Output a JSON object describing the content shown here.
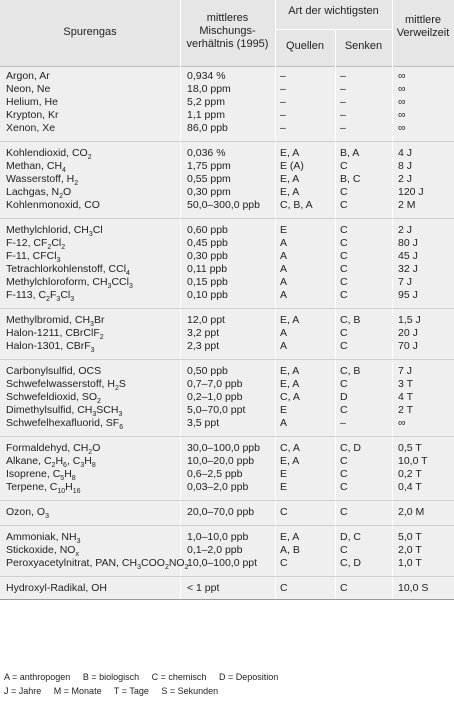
{
  "header": {
    "col0": "Spurengas",
    "col1_line1": "mittleres",
    "col1_line2": "Mischungs-",
    "col1_line3": "verhältnis (1995)",
    "col_group": "Art der wichtigsten",
    "col2": "Quellen",
    "col3": "Senken",
    "col4_line1": "mittlere",
    "col4_line2": "Verweilzeit"
  },
  "groups": [
    {
      "rows": [
        {
          "gas": "Argon, Ar",
          "ratio": "0,934 %",
          "src": "–",
          "sink": "–",
          "time": "∞"
        },
        {
          "gas": "Neon, Ne",
          "ratio": "18,0 ppm",
          "src": "–",
          "sink": "–",
          "time": "∞"
        },
        {
          "gas": "Helium, He",
          "ratio": "5,2 ppm",
          "src": "–",
          "sink": "–",
          "time": "∞"
        },
        {
          "gas": "Krypton, Kr",
          "ratio": "1,1 ppm",
          "src": "–",
          "sink": "–",
          "time": "∞"
        },
        {
          "gas": "Xenon, Xe",
          "ratio": "86,0 ppb",
          "src": "–",
          "sink": "–",
          "time": "∞"
        }
      ]
    },
    {
      "rows": [
        {
          "gas": "Kohlendioxid, CO<sub>2</sub>",
          "ratio": "0,036 %",
          "src": "E, A",
          "sink": "B, A",
          "time": "4 J"
        },
        {
          "gas": "Methan, CH<sub>4</sub>",
          "ratio": "1,75 ppm",
          "src": "E (A)",
          "sink": "C",
          "time": "8 J"
        },
        {
          "gas": "Wasserstoff, H<sub>2</sub>",
          "ratio": "0,55 ppm",
          "src": "E, A",
          "sink": "B, C",
          "time": "2 J"
        },
        {
          "gas": "Lachgas, N<sub>2</sub>O",
          "ratio": "0,30 ppm",
          "src": "E, A",
          "sink": "C",
          "time": "120 J"
        },
        {
          "gas": "Kohlenmonoxid, CO",
          "ratio": "50,0–300,0 ppb",
          "src": "C, B, A",
          "sink": "C",
          "time": "2 M"
        }
      ]
    },
    {
      "rows": [
        {
          "gas": "Methylchlorid, CH<sub>3</sub>Cl",
          "ratio": "0,60 ppb",
          "src": "E",
          "sink": "C",
          "time": "2 J"
        },
        {
          "gas": "F-12, CF<sub>2</sub>Cl<sub>2</sub>",
          "ratio": "0,45 ppb",
          "src": "A",
          "sink": "C",
          "time": "80 J"
        },
        {
          "gas": "F-11, CFCl<sub>3</sub>",
          "ratio": "0,30 ppb",
          "src": "A",
          "sink": "C",
          "time": "45 J"
        },
        {
          "gas": "Tetrachlorkohlenstoff, CCl<sub>4</sub>",
          "ratio": "0,11 ppb",
          "src": "A",
          "sink": "C",
          "time": "32 J"
        },
        {
          "gas": "Methylchloroform, CH<sub>3</sub>CCl<sub>3</sub>",
          "ratio": "0,15 ppb",
          "src": "A",
          "sink": "C",
          "time": "7 J"
        },
        {
          "gas": "F-113, C<sub>2</sub>F<sub>3</sub>Cl<sub>3</sub>",
          "ratio": "0,10 ppb",
          "src": "A",
          "sink": "C",
          "time": "95 J"
        }
      ]
    },
    {
      "rows": [
        {
          "gas": "Methylbromid, CH<sub>3</sub>Br",
          "ratio": "12,0 ppt",
          "src": "E, A",
          "sink": "C, B",
          "time": "1,5 J"
        },
        {
          "gas": "Halon-1211, CBrClF<sub>2</sub>",
          "ratio": "3,2 ppt",
          "src": "A",
          "sink": "C",
          "time": "20 J"
        },
        {
          "gas": "Halon-1301, CBrF<sub>3</sub>",
          "ratio": "2,3 ppt",
          "src": "A",
          "sink": "C",
          "time": "70 J"
        }
      ]
    },
    {
      "rows": [
        {
          "gas": "Carbonylsulfid, OCS",
          "ratio": "0,50 ppb",
          "src": "E, A",
          "sink": "C, B",
          "time": "7 J"
        },
        {
          "gas": "Schwefelwasserstoff, H<sub>2</sub>S",
          "ratio": "0,7–7,0 ppb",
          "src": "E, A",
          "sink": "C",
          "time": "3 T"
        },
        {
          "gas": "Schwefeldioxid, SO<sub>2</sub>",
          "ratio": "0,2–1,0 ppb",
          "src": "C, A",
          "sink": "D",
          "time": "4 T"
        },
        {
          "gas": "Dimethylsulfid, CH<sub>3</sub>SCH<sub>3</sub>",
          "ratio": "5,0–70,0 ppt",
          "src": "E",
          "sink": "C",
          "time": "2 T"
        },
        {
          "gas": "Schwefelhexafluorid, SF<sub>6</sub>",
          "ratio": "3,5 ppt",
          "src": "A",
          "sink": "–",
          "time": "∞"
        }
      ]
    },
    {
      "rows": [
        {
          "gas": "Formaldehyd, CH<sub>2</sub>O",
          "ratio": "30,0–100,0 ppb",
          "src": "C, A",
          "sink": "C, D",
          "time": "0,5 T"
        },
        {
          "gas": "Alkane, C<sub>2</sub>H<sub>6</sub>, C<sub>3</sub>H<sub>8</sub>",
          "ratio": "10,0–20,0 ppb",
          "src": "E, A",
          "sink": "C",
          "time": "10,0 T"
        },
        {
          "gas": "Isoprene, C<sub>5</sub>H<sub>8</sub>",
          "ratio": "0,6–2,5 ppb",
          "src": "E",
          "sink": "C",
          "time": "0,2 T"
        },
        {
          "gas": "Terpene, C<sub>10</sub>H<sub>16</sub>",
          "ratio": "0,03–2,0 ppb",
          "src": "E",
          "sink": "C",
          "time": "0,4 T"
        }
      ]
    },
    {
      "rows": [
        {
          "gas": "Ozon, O<sub>3</sub>",
          "ratio": "20,0–70,0 ppb",
          "src": "C",
          "sink": "C",
          "time": "2,0 M"
        }
      ]
    },
    {
      "rows": [
        {
          "gas": "Ammoniak, NH<sub>3</sub>",
          "ratio": "1,0–10,0 ppb",
          "src": "E, A",
          "sink": "D, C",
          "time": "5,0 T"
        },
        {
          "gas": "Stickoxide, NO<sub>x</sub>",
          "ratio": "0,1–2,0 ppb",
          "src": "A, B",
          "sink": "C",
          "time": "2,0 T"
        },
        {
          "gas": "Peroxyacetylnitrat, PAN, CH<sub>3</sub>COO<sub>2</sub>NO<sub>2</sub>",
          "ratio": "10,0–100,0 ppt",
          "src": "C",
          "sink": "C, D",
          "time": "1,0 T"
        }
      ]
    },
    {
      "rows": [
        {
          "gas": "Hydroxyl-Radikal, OH",
          "ratio": "< 1 ppt",
          "src": "C",
          "sink": "C",
          "time": "10,0 S"
        }
      ]
    }
  ],
  "footer": {
    "line1": [
      "A = anthropogen",
      "B = biologisch",
      "C = chemisch",
      "D = Deposition"
    ],
    "line2": [
      "J = Jahre",
      "M = Monate",
      "T = Tage",
      "S = Sekunden"
    ]
  }
}
